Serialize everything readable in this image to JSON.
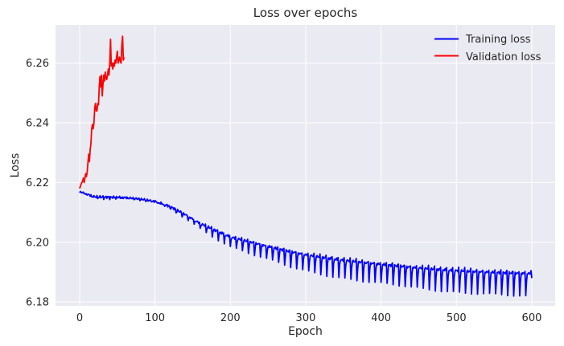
{
  "chart_data": {
    "type": "line",
    "title": "Loss over epochs",
    "xlabel": "Epoch",
    "ylabel": "Loss",
    "xlim": [
      -32,
      631
    ],
    "ylim": [
      6.1787,
      6.2728
    ],
    "xticks": [
      0,
      100,
      200,
      300,
      400,
      500,
      600
    ],
    "yticks": [
      6.18,
      6.2,
      6.22,
      6.24,
      6.26
    ],
    "ytick_labels": [
      "6.18",
      "6.20",
      "6.22",
      "6.24",
      "6.26"
    ],
    "grid": true,
    "legend_position": "top-right",
    "background_color": "#eaeaf2",
    "grid_color": "#ffffff",
    "series": [
      {
        "name": "Training loss",
        "color": "#0000ff",
        "trend": [
          [
            0,
            6.217
          ],
          [
            20,
            6.2152
          ],
          [
            40,
            6.2151
          ],
          [
            60,
            6.215
          ],
          [
            80,
            6.2145
          ],
          [
            100,
            6.2137
          ],
          [
            120,
            6.212
          ],
          [
            140,
            6.2093
          ],
          [
            160,
            6.2063
          ],
          [
            180,
            6.204
          ],
          [
            200,
            6.2018
          ],
          [
            220,
            6.2005
          ],
          [
            240,
            6.1992
          ],
          [
            260,
            6.198
          ],
          [
            280,
            6.1968
          ],
          [
            300,
            6.1958
          ],
          [
            320,
            6.195
          ],
          [
            340,
            6.1943
          ],
          [
            360,
            6.1937
          ],
          [
            380,
            6.1931
          ],
          [
            400,
            6.1926
          ],
          [
            420,
            6.1921
          ],
          [
            440,
            6.1916
          ],
          [
            460,
            6.1912
          ],
          [
            480,
            6.1908
          ],
          [
            500,
            6.1905
          ],
          [
            520,
            6.1902
          ],
          [
            540,
            6.19
          ],
          [
            560,
            6.1898
          ],
          [
            580,
            6.1896
          ],
          [
            600,
            6.1895
          ]
        ],
        "dip_period": 8,
        "dip_depth_trend": [
          [
            0,
            0.0004
          ],
          [
            100,
            0.0004
          ],
          [
            160,
            0.0018
          ],
          [
            200,
            0.0032
          ],
          [
            280,
            0.0052
          ],
          [
            380,
            0.0063
          ],
          [
            480,
            0.007
          ],
          [
            600,
            0.0078
          ]
        ],
        "end_value": 6.188
      },
      {
        "name": "Validation loss",
        "color": "#ff0000",
        "points": [
          [
            0,
            6.218
          ],
          [
            2,
            6.2195
          ],
          [
            4,
            6.2205
          ],
          [
            5,
            6.2215
          ],
          [
            6,
            6.22
          ],
          [
            8,
            6.223
          ],
          [
            9,
            6.222
          ],
          [
            10,
            6.2235
          ],
          [
            12,
            6.2295
          ],
          [
            13,
            6.227
          ],
          [
            14,
            6.231
          ],
          [
            15,
            6.233
          ],
          [
            16,
            6.238
          ],
          [
            17,
            6.2395
          ],
          [
            18,
            6.238
          ],
          [
            19,
            6.24
          ],
          [
            20,
            6.245
          ],
          [
            21,
            6.2465
          ],
          [
            22,
            6.244
          ],
          [
            23,
            6.244
          ],
          [
            24,
            6.2465
          ],
          [
            25,
            6.246
          ],
          [
            26,
            6.252
          ],
          [
            27,
            6.2555
          ],
          [
            28,
            6.252
          ],
          [
            29,
            6.256
          ],
          [
            30,
            6.249
          ],
          [
            31,
            6.253
          ],
          [
            32,
            6.256
          ],
          [
            33,
            6.254
          ],
          [
            34,
            6.257
          ],
          [
            35,
            6.255
          ],
          [
            36,
            6.2545
          ],
          [
            37,
            6.256
          ],
          [
            38,
            6.258
          ],
          [
            39,
            6.256
          ],
          [
            40,
            6.26
          ],
          [
            41,
            6.268
          ],
          [
            42,
            6.259
          ],
          [
            43,
            6.26
          ],
          [
            44,
            6.258
          ],
          [
            45,
            6.26
          ],
          [
            46,
            6.259
          ],
          [
            47,
            6.261
          ],
          [
            48,
            6.26
          ],
          [
            49,
            6.262
          ],
          [
            50,
            6.264
          ],
          [
            51,
            6.26
          ],
          [
            52,
            6.261
          ],
          [
            53,
            6.262
          ],
          [
            54,
            6.2605
          ],
          [
            55,
            6.26
          ],
          [
            56,
            6.266
          ],
          [
            57,
            6.269
          ],
          [
            58,
            6.261
          ],
          [
            59,
            6.262
          ]
        ]
      }
    ]
  }
}
